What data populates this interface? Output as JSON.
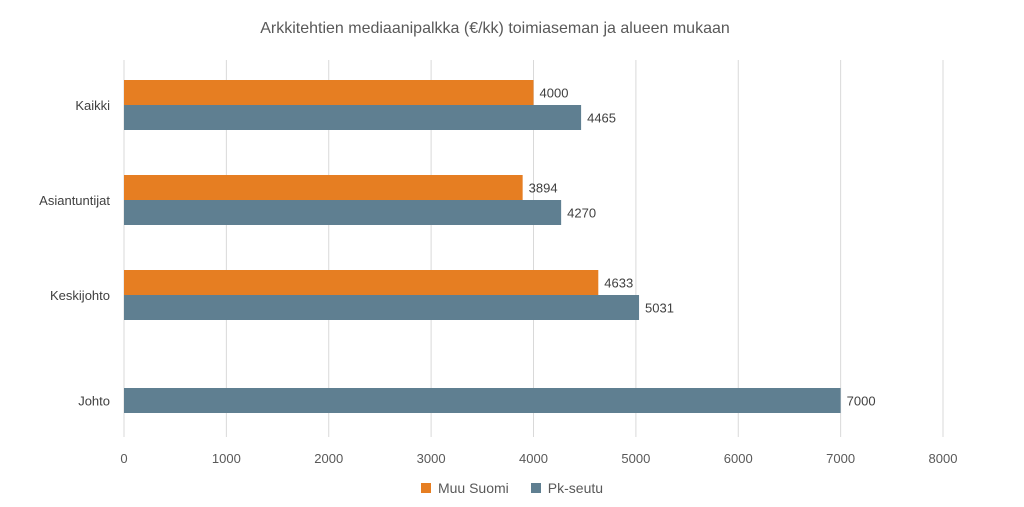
{
  "chart_data": {
    "type": "bar",
    "orientation": "horizontal",
    "title": "Arkkitehtien mediaanipalkka (€/kk) toimiaseman ja alueen mukaan",
    "categories": [
      "Kaikki",
      "Asiantuntijat",
      "Keskijohto",
      "Johto"
    ],
    "series": [
      {
        "name": "Muu Suomi",
        "color": "#E67E22",
        "values": [
          4000,
          3894,
          4633,
          null
        ]
      },
      {
        "name": "Pk-seutu",
        "color": "#5F7F91",
        "values": [
          4465,
          4270,
          5031,
          7000
        ]
      }
    ],
    "xlim": [
      0,
      8000
    ],
    "xticks": [
      0,
      1000,
      2000,
      3000,
      4000,
      5000,
      6000,
      7000,
      8000
    ],
    "xlabel": "",
    "ylabel": "",
    "grid": true,
    "legend_position": "bottom",
    "data_labels": true
  }
}
